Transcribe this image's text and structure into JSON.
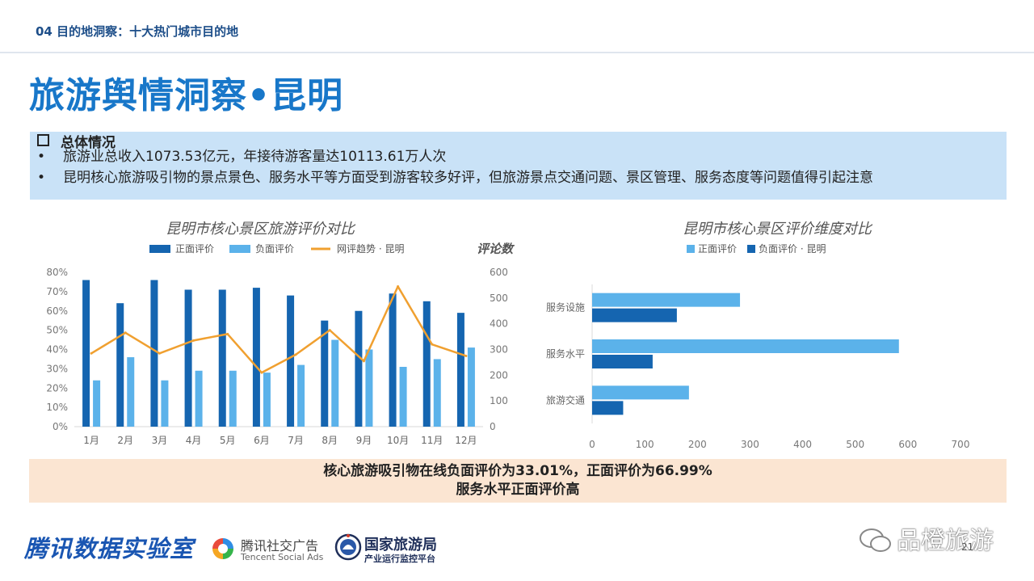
{
  "header": {
    "section": "04 目的地洞察：十大热门城市目的地",
    "title": "旅游舆情洞察•昆明"
  },
  "summary": {
    "heading": "总体情况",
    "bullets": [
      "旅游业总收入1073.53亿元，年接待游客量达10113.61万人次",
      "昆明核心旅游吸引物的景点景色、服务水平等方面受到游客较多好评，但旅游景点交通问题、景区管理、服务态度等问题值得引起注意"
    ],
    "bullet_symbol": "•"
  },
  "chart_data": [
    {
      "type": "bar",
      "title": "昆明市核心景区旅游评价对比",
      "categories": [
        "1月",
        "2月",
        "3月",
        "4月",
        "5月",
        "6月",
        "7月",
        "8月",
        "9月",
        "10月",
        "11月",
        "12月"
      ],
      "series": [
        {
          "name": "正面评价",
          "axis": "left",
          "color": "#1565b0",
          "values": [
            76,
            64,
            76,
            71,
            71,
            72,
            68,
            55,
            60,
            69,
            65,
            59
          ]
        },
        {
          "name": "负面评价",
          "axis": "left",
          "color": "#5bb2ea",
          "values": [
            24,
            36,
            24,
            29,
            29,
            28,
            32,
            45,
            40,
            31,
            35,
            41
          ]
        },
        {
          "name": "网评趋势 · 昆明",
          "type": "line",
          "axis": "right",
          "color": "#f0a030",
          "values": [
            285,
            365,
            285,
            335,
            360,
            210,
            280,
            375,
            255,
            545,
            320,
            275
          ]
        }
      ],
      "y_left_ticks": [
        "0%",
        "10%",
        "20%",
        "30%",
        "40%",
        "50%",
        "60%",
        "70%",
        "80%"
      ],
      "y_left_range": [
        0,
        80
      ],
      "y_right_label": "评论数",
      "y_right_ticks": [
        "0",
        "100",
        "200",
        "300",
        "400",
        "500",
        "600"
      ],
      "y_right_range": [
        0,
        600
      ],
      "legend": "top"
    },
    {
      "type": "bar",
      "orientation": "horizontal",
      "title": "昆明市核心景区评价维度对比",
      "categories": [
        "服务设施",
        "服务水平",
        "旅游交通"
      ],
      "series": [
        {
          "name": "正面评价",
          "color": "#5bb2ea",
          "values": [
            281,
            583,
            184
          ]
        },
        {
          "name": "负面评价 · 昆明",
          "color": "#1565b0",
          "values": [
            161,
            115,
            59
          ]
        }
      ],
      "x_ticks": [
        "0",
        "100",
        "200",
        "300",
        "400",
        "500",
        "600",
        "700"
      ],
      "xlim": [
        0,
        700
      ],
      "legend": "top"
    }
  ],
  "conclusion": {
    "line1": "核心旅游吸引物在线负面评价为33.01%，正面评价为66.99%",
    "line2": "服务水平正面评价高"
  },
  "footer": {
    "brand": "腾讯数据实验室",
    "tsa_name": "腾讯社交广告",
    "tsa_sub": "Tencent Social Ads",
    "nta_name": "国家旅游局",
    "nta_sub": "产业运行监控平台",
    "watermark": "品橙旅游",
    "page_number": "21"
  }
}
